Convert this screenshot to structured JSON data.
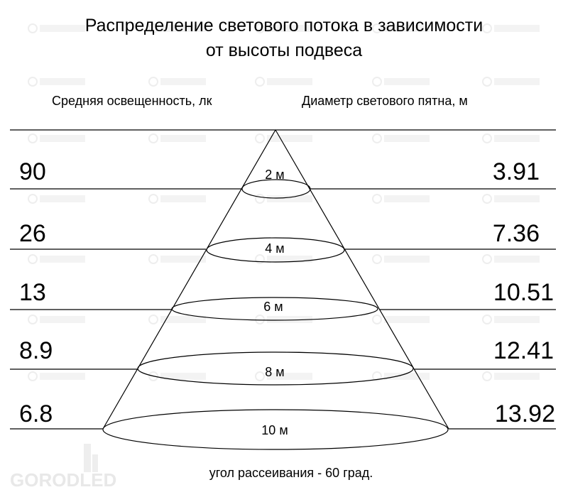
{
  "title_line1": "Распределение светового потока в зависимости",
  "title_line2": "от высоты подвеса",
  "left_header": "Средняя освещенность, лк",
  "right_header": "Диаметр светового пятна, м",
  "footer": "угол рассеивания - 60 град.",
  "watermark": "LEDPROM",
  "logo": "GORODLED",
  "rows": [
    {
      "height": "2 м",
      "illuminance": "90",
      "diameter": "3.91"
    },
    {
      "height": "4 м",
      "illuminance": "26",
      "diameter": "7.36"
    },
    {
      "height": "6 м",
      "illuminance": "13",
      "diameter": "10.51"
    },
    {
      "height": "8 м",
      "illuminance": "8.9",
      "diameter": "12.41"
    },
    {
      "height": "10 м",
      "illuminance": "6.8",
      "diameter": "13.92"
    }
  ]
}
